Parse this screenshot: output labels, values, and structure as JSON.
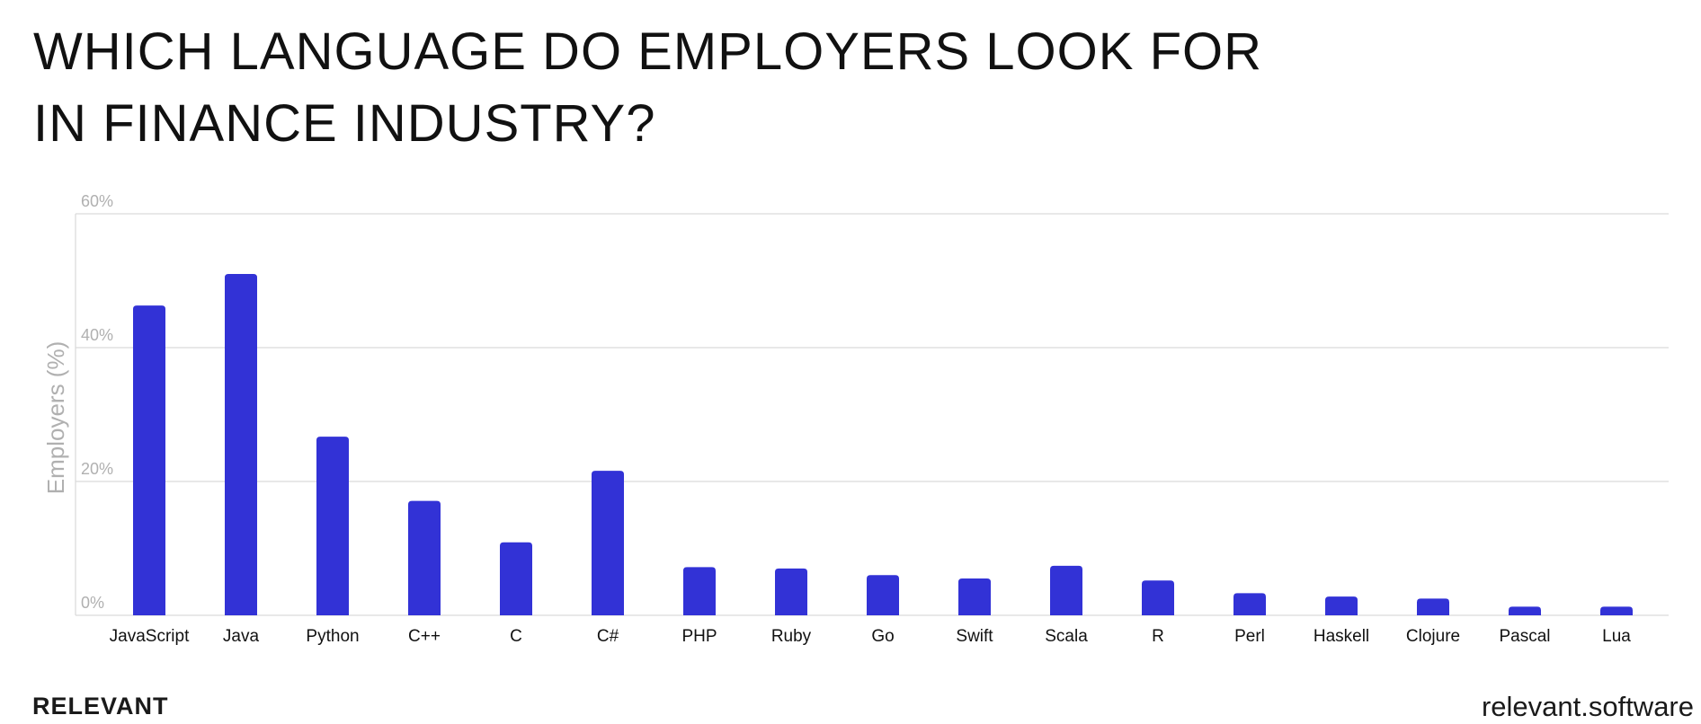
{
  "header": {
    "title_line1": "WHICH LANGUAGE DO EMPLOYERS LOOK FOR",
    "title_line2": "IN FINANCE INDUSTRY?"
  },
  "footer": {
    "brand": "RELEVANT",
    "site": "relevant.software"
  },
  "colors": {
    "bar": "#3232d6",
    "grid": "#d9d9d9",
    "axis_text": "#b0b0b0",
    "label_text": "#111111"
  },
  "chart_data": {
    "type": "bar",
    "title": "WHICH LANGUAGE DO EMPLOYERS LOOK FOR IN FINANCE INDUSTRY?",
    "xlabel": "",
    "ylabel": "Employers (%)",
    "ylim": [
      0,
      60
    ],
    "yticks": [
      0,
      20,
      40,
      60
    ],
    "ytick_labels": [
      "0%",
      "20%",
      "40%",
      "60%"
    ],
    "grid": true,
    "categories": [
      "JavaScript",
      "Java",
      "Python",
      "C++",
      "C",
      "C#",
      "PHP",
      "Ruby",
      "Go",
      "Swift",
      "Scala",
      "R",
      "Perl",
      "Haskell",
      "Clojure",
      "Pascal",
      "Lua"
    ],
    "values": [
      46.3,
      51,
      26.7,
      17.1,
      10.9,
      21.6,
      7.2,
      7,
      6,
      5.5,
      7.4,
      5.2,
      3.3,
      2.8,
      2.5,
      1.3,
      1.3
    ]
  }
}
